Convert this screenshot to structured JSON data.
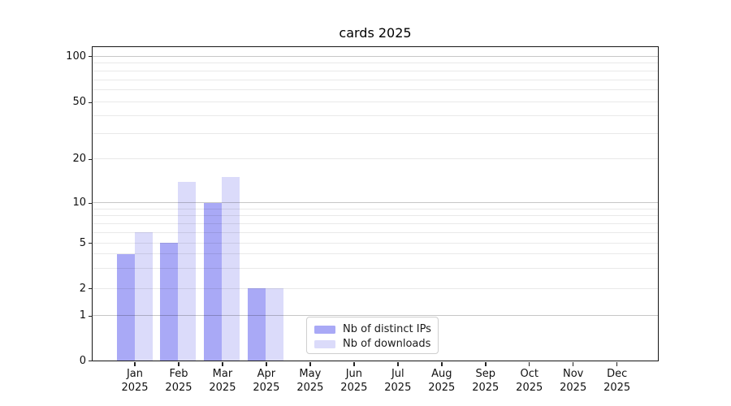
{
  "figure": {
    "background": "#ffffff",
    "spine_color": "#151515"
  },
  "chart_data": {
    "type": "bar",
    "title": "cards 2025",
    "xlabel": "",
    "ylabel": "",
    "y_scale": "symlog",
    "ylim": [
      0,
      115
    ],
    "grid": true,
    "y_ticks": [
      0,
      1,
      2,
      5,
      10,
      20,
      50,
      100
    ],
    "y_major_gridlines": [
      1,
      10,
      100
    ],
    "y_minor_gridlines": [
      2,
      3,
      4,
      5,
      6,
      7,
      8,
      9,
      20,
      30,
      40,
      50,
      60,
      70,
      80,
      90
    ],
    "categories": [
      "Jan",
      "Feb",
      "Mar",
      "Apr",
      "May",
      "Jun",
      "Jul",
      "Aug",
      "Sep",
      "Oct",
      "Nov",
      "Dec"
    ],
    "category_year": "2025",
    "legend_position": "lower-center",
    "series": [
      {
        "name": "Nb of distinct IPs",
        "color": "#a9a9f6",
        "values": [
          4,
          5,
          10,
          2,
          0,
          0,
          0,
          0,
          0,
          0,
          0,
          0
        ]
      },
      {
        "name": "Nb of downloads",
        "color": "#dbdbfa",
        "values": [
          6,
          14,
          15,
          2,
          0,
          0,
          0,
          0,
          0,
          0,
          0,
          0
        ]
      }
    ]
  }
}
